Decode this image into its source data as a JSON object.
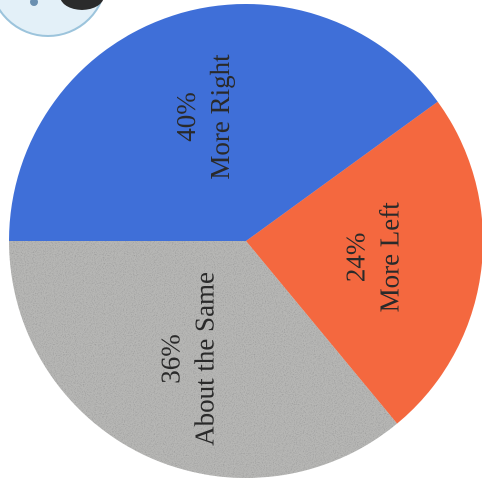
{
  "chart_data": {
    "type": "pie",
    "categories": [
      "More Right",
      "More Left",
      "About the Same"
    ],
    "values": [
      40,
      24,
      36
    ],
    "value_labels": [
      "40%",
      "24%",
      "36%"
    ],
    "colors": [
      "#3f6fd8",
      "#f4683f",
      "#b7b7b5"
    ]
  }
}
